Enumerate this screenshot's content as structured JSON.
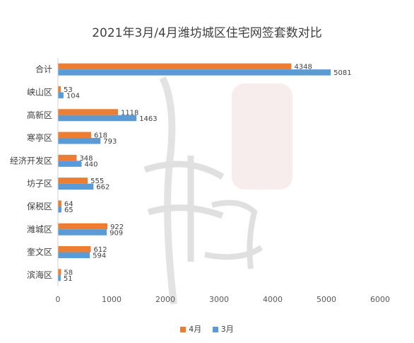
{
  "chart_data": {
    "type": "bar",
    "orientation": "horizontal",
    "title": "2021年3月/4月潍坊城区住宅网签套数对比",
    "categories": [
      "合计",
      "峡山区",
      "高新区",
      "寒亭区",
      "经济开发区",
      "坊子区",
      "保税区",
      "潍城区",
      "奎文区",
      "滨海区"
    ],
    "series": [
      {
        "name": "4月",
        "color": "#ED7D31",
        "values": [
          4348,
          53,
          1118,
          618,
          348,
          555,
          64,
          922,
          612,
          58
        ]
      },
      {
        "name": "3月",
        "color": "#5B9BD5",
        "values": [
          5081,
          104,
          1463,
          793,
          440,
          662,
          65,
          909,
          594,
          51
        ]
      }
    ],
    "xlim": [
      0,
      6000
    ],
    "xticks": [
      "0",
      "1000",
      "2000",
      "3000",
      "4000",
      "5000",
      "6000"
    ],
    "grid": false,
    "legend_position": "bottom",
    "watermark": "潍坊 楼市通"
  }
}
